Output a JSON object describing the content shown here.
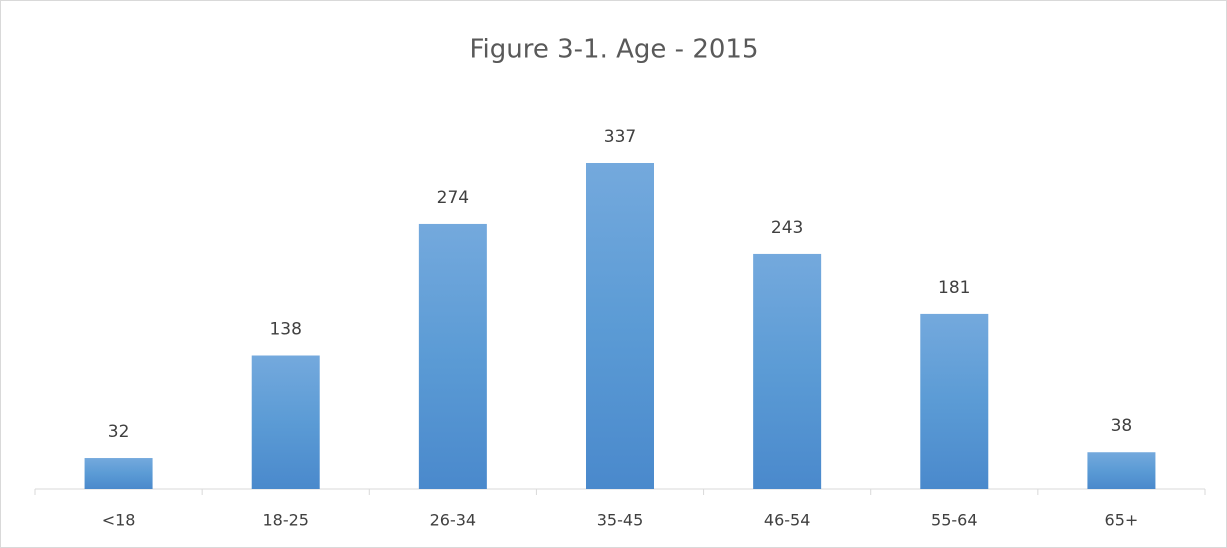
{
  "chart_data": {
    "type": "bar",
    "title": "Figure 3-1. Age - 2015",
    "categories": [
      "<18",
      "18-25",
      "26-34",
      "35-45",
      "46-54",
      "55-64",
      "65+"
    ],
    "values": [
      32,
      138,
      274,
      337,
      243,
      181,
      38
    ],
    "color": "#5b9bd5"
  }
}
